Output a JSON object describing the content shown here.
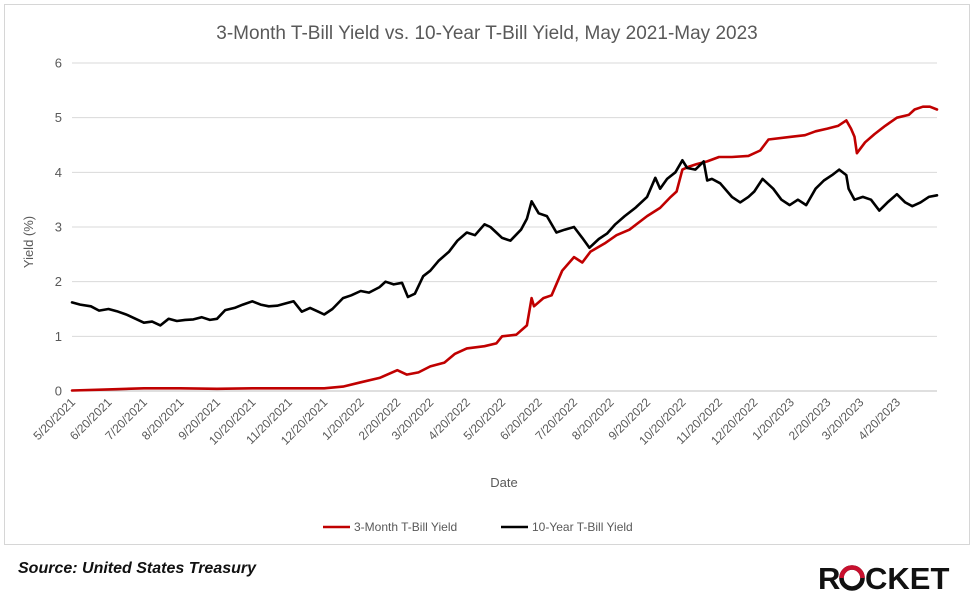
{
  "source_note": "Source: United States Treasury",
  "brand": {
    "name": "ROCKET",
    "accent": "#c8102e"
  },
  "chart_data": {
    "type": "line",
    "title": "3-Month T-Bill Yield vs. 10-Year T-Bill Yield, May 2021-May 2023",
    "xlabel": "Date",
    "ylabel": "Yield (%)",
    "ylim": [
      0,
      6
    ],
    "yticks": [
      0,
      1,
      2,
      3,
      4,
      5,
      6
    ],
    "xlim": [
      "2021-05-20",
      "2023-05-24"
    ],
    "x_tick_labels": [
      "5/20/2021",
      "6/20/2021",
      "7/20/2021",
      "8/20/2021",
      "9/20/2021",
      "10/20/2021",
      "11/20/2021",
      "12/20/2021",
      "1/20/2022",
      "2/20/2022",
      "3/20/2022",
      "4/20/2022",
      "5/20/2022",
      "6/20/2022",
      "7/20/2022",
      "8/20/2022",
      "9/20/2022",
      "10/20/2022",
      "11/20/2022",
      "12/20/2022",
      "1/20/2023",
      "2/20/2023",
      "3/20/2023",
      "4/20/2023"
    ],
    "grid": "horizontal",
    "legend": "bottom",
    "series": [
      {
        "name": "3-Month T-Bill Yield",
        "color": "#c00000",
        "points": [
          [
            "2021-05-20",
            0.01
          ],
          [
            "2021-06-20",
            0.03
          ],
          [
            "2021-07-20",
            0.05
          ],
          [
            "2021-08-20",
            0.05
          ],
          [
            "2021-09-20",
            0.04
          ],
          [
            "2021-10-20",
            0.05
          ],
          [
            "2021-11-20",
            0.05
          ],
          [
            "2021-12-20",
            0.05
          ],
          [
            "2022-01-05",
            0.08
          ],
          [
            "2022-01-20",
            0.16
          ],
          [
            "2022-02-05",
            0.24
          ],
          [
            "2022-02-20",
            0.38
          ],
          [
            "2022-02-28",
            0.3
          ],
          [
            "2022-03-10",
            0.34
          ],
          [
            "2022-03-20",
            0.45
          ],
          [
            "2022-04-01",
            0.52
          ],
          [
            "2022-04-10",
            0.68
          ],
          [
            "2022-04-20",
            0.78
          ],
          [
            "2022-05-05",
            0.82
          ],
          [
            "2022-05-15",
            0.87
          ],
          [
            "2022-05-20",
            1.0
          ],
          [
            "2022-06-01",
            1.03
          ],
          [
            "2022-06-10",
            1.2
          ],
          [
            "2022-06-14",
            1.7
          ],
          [
            "2022-06-16",
            1.55
          ],
          [
            "2022-06-24",
            1.7
          ],
          [
            "2022-07-01",
            1.75
          ],
          [
            "2022-07-10",
            2.2
          ],
          [
            "2022-07-20",
            2.45
          ],
          [
            "2022-07-27",
            2.35
          ],
          [
            "2022-08-03",
            2.55
          ],
          [
            "2022-08-15",
            2.7
          ],
          [
            "2022-08-25",
            2.85
          ],
          [
            "2022-09-05",
            2.95
          ],
          [
            "2022-09-20",
            3.2
          ],
          [
            "2022-10-01",
            3.35
          ],
          [
            "2022-10-10",
            3.55
          ],
          [
            "2022-10-15",
            3.65
          ],
          [
            "2022-10-20",
            4.05
          ],
          [
            "2022-10-25",
            4.1
          ],
          [
            "2022-11-01",
            4.15
          ],
          [
            "2022-11-10",
            4.2
          ],
          [
            "2022-11-20",
            4.28
          ],
          [
            "2022-12-01",
            4.28
          ],
          [
            "2022-12-15",
            4.3
          ],
          [
            "2022-12-25",
            4.4
          ],
          [
            "2023-01-01",
            4.6
          ],
          [
            "2023-01-20",
            4.65
          ],
          [
            "2023-02-01",
            4.68
          ],
          [
            "2023-02-10",
            4.75
          ],
          [
            "2023-02-20",
            4.8
          ],
          [
            "2023-03-01",
            4.85
          ],
          [
            "2023-03-08",
            4.95
          ],
          [
            "2023-03-12",
            4.8
          ],
          [
            "2023-03-15",
            4.65
          ],
          [
            "2023-03-17",
            4.35
          ],
          [
            "2023-03-24",
            4.55
          ],
          [
            "2023-04-01",
            4.7
          ],
          [
            "2023-04-10",
            4.85
          ],
          [
            "2023-04-20",
            5.0
          ],
          [
            "2023-04-30",
            5.05
          ],
          [
            "2023-05-05",
            5.15
          ],
          [
            "2023-05-12",
            5.2
          ],
          [
            "2023-05-18",
            5.2
          ],
          [
            "2023-05-24",
            5.15
          ]
        ]
      },
      {
        "name": "10-Year T-Bill Yield",
        "color": "#000000",
        "points": [
          [
            "2021-05-20",
            1.62
          ],
          [
            "2021-05-27",
            1.58
          ],
          [
            "2021-06-05",
            1.55
          ],
          [
            "2021-06-12",
            1.47
          ],
          [
            "2021-06-20",
            1.5
          ],
          [
            "2021-06-27",
            1.46
          ],
          [
            "2021-07-05",
            1.4
          ],
          [
            "2021-07-12",
            1.33
          ],
          [
            "2021-07-20",
            1.25
          ],
          [
            "2021-07-27",
            1.27
          ],
          [
            "2021-08-03",
            1.2
          ],
          [
            "2021-08-10",
            1.32
          ],
          [
            "2021-08-17",
            1.28
          ],
          [
            "2021-08-24",
            1.3
          ],
          [
            "2021-08-31",
            1.31
          ],
          [
            "2021-09-07",
            1.35
          ],
          [
            "2021-09-14",
            1.3
          ],
          [
            "2021-09-20",
            1.32
          ],
          [
            "2021-09-27",
            1.48
          ],
          [
            "2021-10-05",
            1.52
          ],
          [
            "2021-10-12",
            1.58
          ],
          [
            "2021-10-20",
            1.64
          ],
          [
            "2021-10-27",
            1.58
          ],
          [
            "2021-11-03",
            1.55
          ],
          [
            "2021-11-10",
            1.56
          ],
          [
            "2021-11-17",
            1.6
          ],
          [
            "2021-11-24",
            1.64
          ],
          [
            "2021-12-01",
            1.45
          ],
          [
            "2021-12-08",
            1.52
          ],
          [
            "2021-12-15",
            1.45
          ],
          [
            "2021-12-20",
            1.4
          ],
          [
            "2021-12-27",
            1.5
          ],
          [
            "2022-01-05",
            1.7
          ],
          [
            "2022-01-12",
            1.75
          ],
          [
            "2022-01-20",
            1.83
          ],
          [
            "2022-01-27",
            1.8
          ],
          [
            "2022-02-05",
            1.9
          ],
          [
            "2022-02-10",
            2.0
          ],
          [
            "2022-02-17",
            1.95
          ],
          [
            "2022-02-24",
            1.98
          ],
          [
            "2022-03-01",
            1.72
          ],
          [
            "2022-03-07",
            1.78
          ],
          [
            "2022-03-14",
            2.1
          ],
          [
            "2022-03-20",
            2.2
          ],
          [
            "2022-03-27",
            2.38
          ],
          [
            "2022-04-05",
            2.55
          ],
          [
            "2022-04-12",
            2.75
          ],
          [
            "2022-04-20",
            2.9
          ],
          [
            "2022-04-27",
            2.85
          ],
          [
            "2022-05-05",
            3.05
          ],
          [
            "2022-05-10",
            3.0
          ],
          [
            "2022-05-15",
            2.9
          ],
          [
            "2022-05-20",
            2.8
          ],
          [
            "2022-05-27",
            2.75
          ],
          [
            "2022-06-05",
            2.95
          ],
          [
            "2022-06-10",
            3.15
          ],
          [
            "2022-06-14",
            3.47
          ],
          [
            "2022-06-20",
            3.25
          ],
          [
            "2022-06-27",
            3.2
          ],
          [
            "2022-07-05",
            2.9
          ],
          [
            "2022-07-12",
            2.95
          ],
          [
            "2022-07-20",
            3.0
          ],
          [
            "2022-07-27",
            2.8
          ],
          [
            "2022-08-02",
            2.62
          ],
          [
            "2022-08-10",
            2.78
          ],
          [
            "2022-08-17",
            2.88
          ],
          [
            "2022-08-24",
            3.05
          ],
          [
            "2022-09-01",
            3.2
          ],
          [
            "2022-09-10",
            3.35
          ],
          [
            "2022-09-20",
            3.55
          ],
          [
            "2022-09-27",
            3.9
          ],
          [
            "2022-10-01",
            3.7
          ],
          [
            "2022-10-07",
            3.88
          ],
          [
            "2022-10-14",
            4.0
          ],
          [
            "2022-10-20",
            4.22
          ],
          [
            "2022-10-24",
            4.08
          ],
          [
            "2022-10-31",
            4.05
          ],
          [
            "2022-11-07",
            4.2
          ],
          [
            "2022-11-10",
            3.85
          ],
          [
            "2022-11-14",
            3.88
          ],
          [
            "2022-11-21",
            3.8
          ],
          [
            "2022-12-01",
            3.55
          ],
          [
            "2022-12-08",
            3.45
          ],
          [
            "2022-12-15",
            3.55
          ],
          [
            "2022-12-20",
            3.65
          ],
          [
            "2022-12-27",
            3.88
          ],
          [
            "2023-01-05",
            3.7
          ],
          [
            "2023-01-12",
            3.5
          ],
          [
            "2023-01-19",
            3.4
          ],
          [
            "2023-01-26",
            3.5
          ],
          [
            "2023-02-02",
            3.4
          ],
          [
            "2023-02-10",
            3.7
          ],
          [
            "2023-02-17",
            3.85
          ],
          [
            "2023-02-24",
            3.95
          ],
          [
            "2023-03-02",
            4.05
          ],
          [
            "2023-03-08",
            3.95
          ],
          [
            "2023-03-10",
            3.7
          ],
          [
            "2023-03-15",
            3.5
          ],
          [
            "2023-03-22",
            3.55
          ],
          [
            "2023-03-29",
            3.5
          ],
          [
            "2023-04-05",
            3.3
          ],
          [
            "2023-04-12",
            3.45
          ],
          [
            "2023-04-20",
            3.6
          ],
          [
            "2023-04-27",
            3.45
          ],
          [
            "2023-05-03",
            3.38
          ],
          [
            "2023-05-10",
            3.45
          ],
          [
            "2023-05-17",
            3.55
          ],
          [
            "2023-05-24",
            3.58
          ]
        ]
      }
    ]
  }
}
